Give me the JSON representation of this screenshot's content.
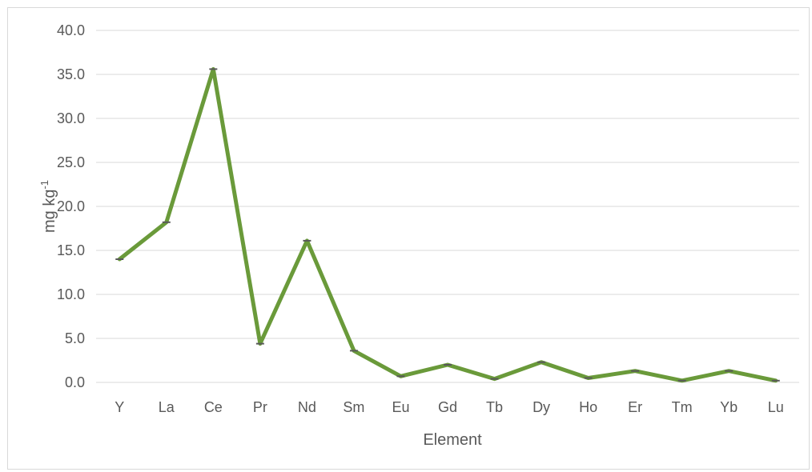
{
  "chart_data": {
    "type": "line",
    "xlabel": "Element",
    "ylabel_base": "mg kg",
    "ylabel_sup": "-1",
    "ylim": [
      0,
      40
    ],
    "y_ticks": [
      "0.0",
      "5.0",
      "10.0",
      "15.0",
      "20.0",
      "25.0",
      "30.0",
      "35.0",
      "40.0"
    ],
    "grid": true,
    "legend": "none",
    "categories": [
      "Y",
      "La",
      "Ce",
      "Pr",
      "Nd",
      "Sm",
      "Eu",
      "Gd",
      "Tb",
      "Dy",
      "Ho",
      "Er",
      "Tm",
      "Yb",
      "Lu"
    ],
    "series": [
      {
        "color": "#6a9a3a",
        "values": [
          14.0,
          18.2,
          35.6,
          4.4,
          16.1,
          3.6,
          0.7,
          2.0,
          0.4,
          2.3,
          0.5,
          1.3,
          0.2,
          1.3,
          0.2
        ]
      }
    ]
  }
}
